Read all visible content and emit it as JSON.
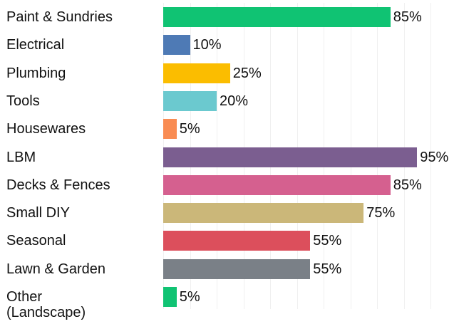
{
  "chart_data": {
    "type": "bar",
    "orientation": "horizontal",
    "categories": [
      "Paint & Sundries",
      "Electrical",
      "Plumbing",
      "Tools",
      "Housewares",
      "LBM",
      "Decks & Fences",
      "Small DIY",
      "Seasonal",
      "Lawn & Garden",
      "Other (Landscape)"
    ],
    "values": [
      85,
      10,
      25,
      20,
      5,
      95,
      85,
      75,
      55,
      55,
      5
    ],
    "value_labels": [
      "85%",
      "10%",
      "25%",
      "20%",
      "5%",
      "95%",
      "85%",
      "75%",
      "55%",
      "55%",
      "5%"
    ],
    "colors": [
      "#10c373",
      "#4e7ab5",
      "#fbbd00",
      "#6bc9cf",
      "#f98c53",
      "#7b5e90",
      "#d5608f",
      "#cbb779",
      "#dc4f5c",
      "#7a8087",
      "#10c373"
    ],
    "xlim": [
      0,
      100
    ],
    "xticks": [
      0,
      10,
      20,
      30,
      40,
      50,
      60,
      70,
      80,
      90,
      100
    ],
    "grid": true
  }
}
